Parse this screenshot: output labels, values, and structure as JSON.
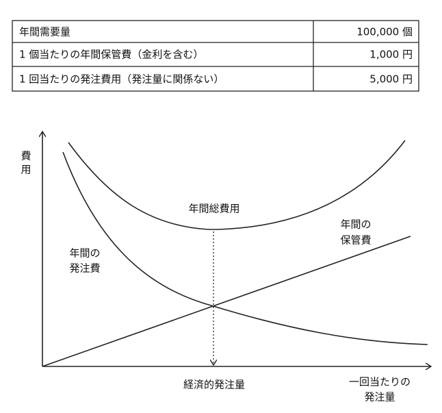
{
  "table": {
    "rows": [
      [
        "年間需要量",
        "100,000 個"
      ],
      [
        "1 個当たりの年間保管費（金利を含む）",
        "1,000 円"
      ],
      [
        "1 回当たりの発注費用（発注量に関係ない）",
        "5,000 円"
      ]
    ]
  },
  "diagram": {
    "y_axis_label": [
      "費",
      "用"
    ],
    "total_cost_label": "年間総費用",
    "ordering_cost_label": [
      "年間の",
      "発注費"
    ],
    "holding_cost_label": [
      "年間の",
      "保管費"
    ],
    "eoq_label": "経済的発注量",
    "x_axis_label": [
      "一回当たりの",
      "発注量"
    ]
  }
}
